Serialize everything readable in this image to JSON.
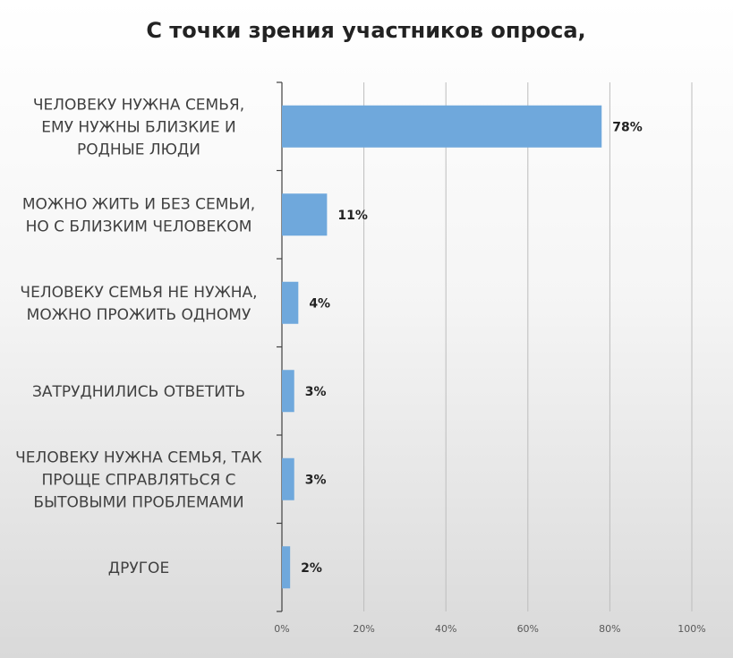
{
  "chart_data": {
    "type": "bar",
    "orientation": "horizontal",
    "title": "С точки зрения участников опроса,",
    "categories": [
      [
        "ЧЕЛОВЕКУ НУЖНА СЕМЬЯ,",
        "ЕМУ НУЖНЫ БЛИЗКИЕ И",
        "РОДНЫЕ ЛЮДИ"
      ],
      [
        "МОЖНО ЖИТЬ И БЕЗ СЕМЬИ,",
        "НО С БЛИЗКИМ ЧЕЛОВЕКОМ"
      ],
      [
        "ЧЕЛОВЕКУ СЕМЬЯ НЕ НУЖНА,",
        "МОЖНО ПРОЖИТЬ ОДНОМУ"
      ],
      [
        "ЗАТРУДНИЛИСЬ ОТВЕТИТЬ"
      ],
      [
        "ЧЕЛОВЕКУ НУЖНА СЕМЬЯ, ТАК",
        "ПРОЩЕ СПРАВЛЯТЬСЯ С",
        "БЫТОВЫМИ ПРОБЛЕМАМИ"
      ],
      [
        "ДРУГОЕ"
      ]
    ],
    "values": [
      78,
      11,
      4,
      3,
      3,
      2
    ],
    "value_labels": [
      "78%",
      "11%",
      "4%",
      "3%",
      "3%",
      "2%"
    ],
    "xlim": [
      0,
      100
    ],
    "x_ticks": [
      "0%",
      "20%",
      "40%",
      "60%",
      "80%",
      "100%"
    ],
    "grid": true,
    "bar_color": "#6fa8dc"
  }
}
